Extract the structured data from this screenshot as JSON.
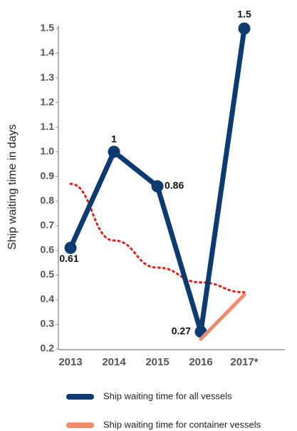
{
  "chart_data": {
    "type": "line",
    "y_label": "Ship waiting time in days",
    "categories": [
      "2013",
      "2014",
      "2015",
      "2016",
      "2017*"
    ],
    "series": [
      {
        "name": "Ship waiting time for all vessels",
        "color": "#0d3b70",
        "values": [
          0.61,
          1,
          0.86,
          0.27,
          1.5
        ]
      },
      {
        "name": "Ship waiting time for container vessels",
        "color": "#f08a6a",
        "values": [
          null,
          null,
          null,
          0.24,
          0.42
        ]
      }
    ],
    "trend": {
      "color": "#e0201b",
      "values": [
        0.87,
        0.64,
        0.53,
        0.47,
        0.43
      ]
    },
    "ylim": [
      0.2,
      1.5
    ],
    "yticks": [
      0.2,
      0.3,
      0.4,
      0.5,
      0.6,
      0.7,
      0.8,
      0.9,
      {
        "value": 1,
        "label": "1.0"
      },
      1.1,
      1.2,
      1.3,
      1.4,
      1.5
    ]
  }
}
